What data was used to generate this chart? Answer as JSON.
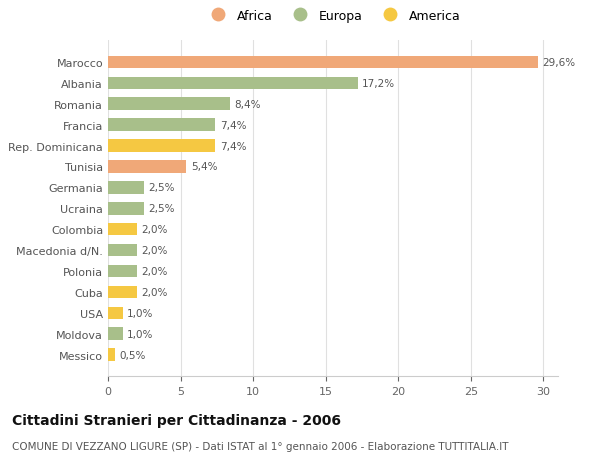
{
  "categories": [
    "Messico",
    "Moldova",
    "USA",
    "Cuba",
    "Polonia",
    "Macedonia d/N.",
    "Colombia",
    "Ucraina",
    "Germania",
    "Tunisia",
    "Rep. Dominicana",
    "Francia",
    "Romania",
    "Albania",
    "Marocco"
  ],
  "values": [
    0.5,
    1.0,
    1.0,
    2.0,
    2.0,
    2.0,
    2.0,
    2.5,
    2.5,
    5.4,
    7.4,
    7.4,
    8.4,
    17.2,
    29.6
  ],
  "labels": [
    "0,5%",
    "1,0%",
    "1,0%",
    "2,0%",
    "2,0%",
    "2,0%",
    "2,0%",
    "2,5%",
    "2,5%",
    "5,4%",
    "7,4%",
    "7,4%",
    "8,4%",
    "17,2%",
    "29,6%"
  ],
  "colors": [
    "#f5c842",
    "#a8bf8a",
    "#f5c842",
    "#f5c842",
    "#a8bf8a",
    "#a8bf8a",
    "#f5c842",
    "#a8bf8a",
    "#a8bf8a",
    "#f0a878",
    "#f5c842",
    "#a8bf8a",
    "#a8bf8a",
    "#a8bf8a",
    "#f0a878"
  ],
  "legend_labels": [
    "Africa",
    "Europa",
    "America"
  ],
  "legend_colors": [
    "#f0a878",
    "#a8bf8a",
    "#f5c842"
  ],
  "title": "Cittadini Stranieri per Cittadinanza - 2006",
  "subtitle": "COMUNE DI VEZZANO LIGURE (SP) - Dati ISTAT al 1° gennaio 2006 - Elaborazione TUTTITALIA.IT",
  "xlim": [
    0,
    31
  ],
  "xticks": [
    0,
    5,
    10,
    15,
    20,
    25,
    30
  ],
  "bg_color": "#ffffff",
  "bar_height": 0.6,
  "title_fontsize": 10,
  "subtitle_fontsize": 7.5,
  "label_fontsize": 7.5,
  "tick_fontsize": 8
}
